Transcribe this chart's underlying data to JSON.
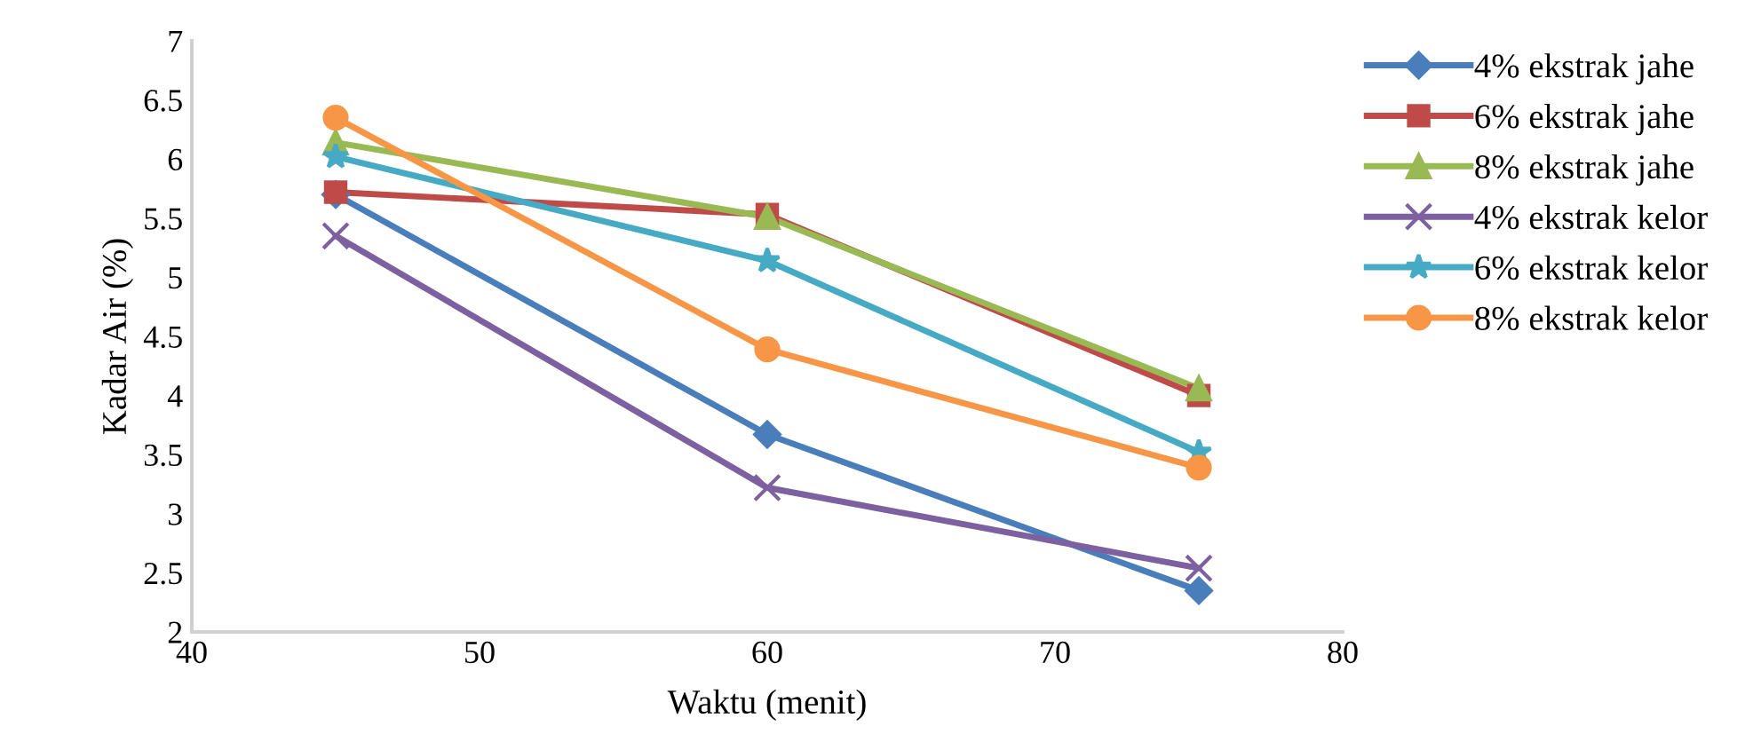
{
  "chart_data": {
    "type": "line",
    "xlabel": "Waktu (menit)",
    "ylabel": "Kadar Air (%)",
    "x": [
      45,
      60,
      75
    ],
    "xlim": [
      40,
      80
    ],
    "xticks": [
      40,
      50,
      60,
      70,
      80
    ],
    "ylim": [
      2,
      7
    ],
    "yticks": [
      2,
      2.5,
      3,
      3.5,
      4,
      4.5,
      5,
      5.5,
      6,
      6.5,
      7
    ],
    "grid": false,
    "legend": "right",
    "line_style": "solid",
    "series": [
      {
        "name": "4% ekstrak jahe",
        "color": "#4a7ebb",
        "marker": "diamond",
        "values": [
          5.7,
          3.67,
          2.35
        ]
      },
      {
        "name": "6% ekstrak jahe",
        "color": "#be4b48",
        "marker": "square",
        "values": [
          5.72,
          5.53,
          4.0
        ]
      },
      {
        "name": "8% ekstrak jahe",
        "color": "#98b954",
        "marker": "triangle",
        "values": [
          6.14,
          5.51,
          4.06
        ]
      },
      {
        "name": "4% ekstrak kelor",
        "color": "#7d60a0",
        "marker": "cross",
        "values": [
          5.35,
          3.22,
          2.54
        ]
      },
      {
        "name": "6% ekstrak kelor",
        "color": "#46aac5",
        "marker": "star",
        "values": [
          6.02,
          5.14,
          3.52
        ]
      },
      {
        "name": "8% ekstrak kelor",
        "color": "#f79646",
        "marker": "circle",
        "values": [
          6.35,
          4.39,
          3.39
        ]
      }
    ]
  }
}
